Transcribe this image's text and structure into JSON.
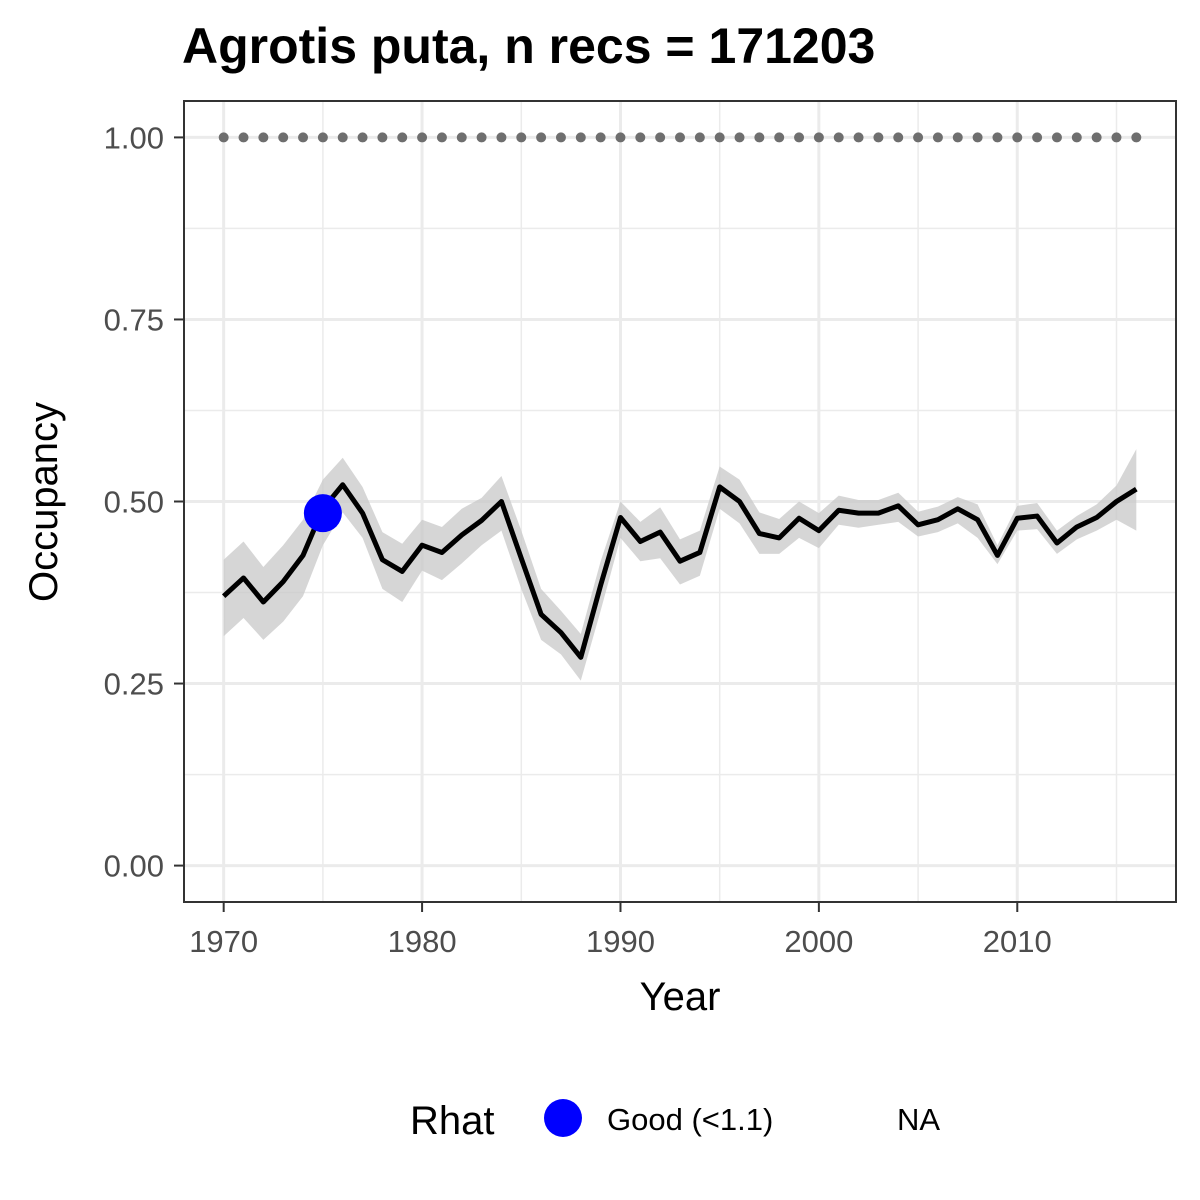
{
  "chart_data": {
    "type": "line",
    "title": "Agrotis puta, n recs = 171203",
    "xlabel": "Year",
    "ylabel": "Occupancy",
    "xlim": [
      1968,
      2018
    ],
    "ylim": [
      -0.05,
      1.05
    ],
    "x_ticks": [
      1970,
      1980,
      1990,
      2000,
      2010
    ],
    "x_tick_labels": [
      "1970",
      "1980",
      "1990",
      "2000",
      "2010"
    ],
    "y_ticks": [
      0,
      0.25,
      0.5,
      0.75,
      1
    ],
    "y_tick_labels": [
      "0.00",
      "0.25",
      "0.50",
      "0.75",
      "1.00"
    ],
    "grid": true,
    "legend": {
      "position": "bottom",
      "title": "Rhat",
      "entries": [
        {
          "label": "Good (<1.1)",
          "color": "#0000ff"
        },
        {
          "label": "NA",
          "color": ""
        }
      ]
    },
    "colors": {
      "line": "#000000",
      "ribbon": "#c8c8c8",
      "rhat_good": "#0000ff",
      "reference_dots": "#6e6e6e",
      "grid": "#ebebeb",
      "panel_border": "#333333"
    },
    "series": [
      {
        "x": [
          1970,
          1971,
          1972,
          1973,
          1974,
          1975,
          1976,
          1977,
          1978,
          1979,
          1980,
          1981,
          1982,
          1983,
          1984,
          1985,
          1986,
          1987,
          1988,
          1989,
          1990,
          1991,
          1992,
          1993,
          1994,
          1995,
          1996,
          1997,
          1998,
          1999,
          2000,
          2001,
          2002,
          2003,
          2004,
          2005,
          2006,
          2007,
          2008,
          2009,
          2010,
          2011,
          2012,
          2013,
          2014,
          2015,
          2016
        ],
        "y": [
          0.37,
          0.395,
          0.362,
          0.39,
          0.426,
          0.49,
          0.523,
          0.484,
          0.42,
          0.404,
          0.44,
          0.43,
          0.454,
          0.474,
          0.5,
          0.422,
          0.345,
          0.32,
          0.286,
          0.385,
          0.478,
          0.445,
          0.458,
          0.418,
          0.43,
          0.52,
          0.5,
          0.456,
          0.45,
          0.477,
          0.46,
          0.488,
          0.484,
          0.484,
          0.494,
          0.468,
          0.475,
          0.49,
          0.475,
          0.426,
          0.477,
          0.48,
          0.443,
          0.465,
          0.478,
          0.5,
          0.517
        ],
        "lower": [
          0.315,
          0.34,
          0.31,
          0.335,
          0.37,
          0.44,
          0.485,
          0.45,
          0.38,
          0.362,
          0.405,
          0.392,
          0.415,
          0.44,
          0.46,
          0.38,
          0.31,
          0.29,
          0.254,
          0.35,
          0.45,
          0.418,
          0.422,
          0.386,
          0.398,
          0.49,
          0.47,
          0.428,
          0.428,
          0.45,
          0.436,
          0.468,
          0.464,
          0.468,
          0.472,
          0.452,
          0.458,
          0.47,
          0.45,
          0.414,
          0.46,
          0.462,
          0.428,
          0.448,
          0.46,
          0.475,
          0.46
        ],
        "upper": [
          0.42,
          0.445,
          0.41,
          0.44,
          0.475,
          0.53,
          0.56,
          0.52,
          0.458,
          0.442,
          0.475,
          0.465,
          0.49,
          0.505,
          0.535,
          0.46,
          0.38,
          0.35,
          0.318,
          0.418,
          0.5,
          0.472,
          0.492,
          0.448,
          0.46,
          0.548,
          0.53,
          0.485,
          0.476,
          0.5,
          0.484,
          0.508,
          0.502,
          0.502,
          0.512,
          0.486,
          0.493,
          0.506,
          0.496,
          0.44,
          0.494,
          0.498,
          0.46,
          0.48,
          0.496,
          0.522,
          0.572
        ]
      }
    ],
    "rhat_points": [
      {
        "x": 1975,
        "y": 0.484,
        "label": "Good (<1.1)"
      }
    ],
    "reference_dots": {
      "y": 1.0,
      "x": [
        1970,
        1971,
        1972,
        1973,
        1974,
        1975,
        1976,
        1977,
        1978,
        1979,
        1980,
        1981,
        1982,
        1983,
        1984,
        1985,
        1986,
        1987,
        1988,
        1989,
        1990,
        1991,
        1992,
        1993,
        1994,
        1995,
        1996,
        1997,
        1998,
        1999,
        2000,
        2001,
        2002,
        2003,
        2004,
        2005,
        2006,
        2007,
        2008,
        2009,
        2010,
        2011,
        2012,
        2013,
        2014,
        2015,
        2016
      ]
    }
  }
}
